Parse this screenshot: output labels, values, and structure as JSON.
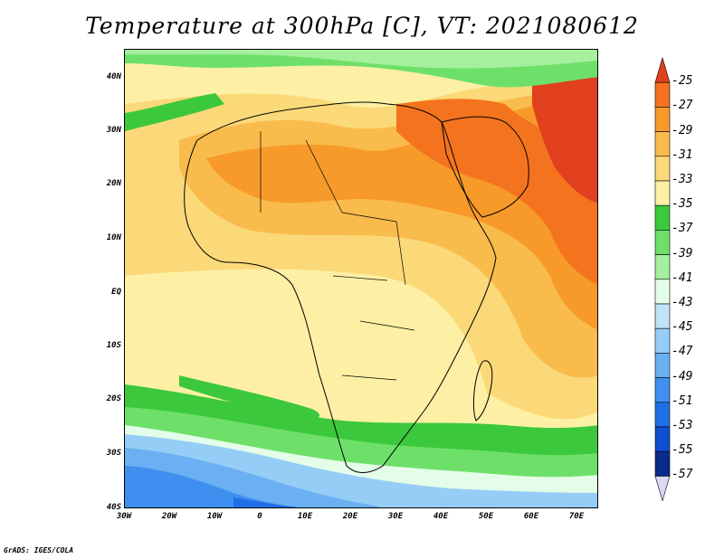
{
  "title": "Temperature at 300hPa [C], VT: 2021080612",
  "credit": "GrADS: IGES/COLA",
  "axes": {
    "lat_labels": [
      "40N",
      "30N",
      "20N",
      "10N",
      "EQ",
      "10S",
      "20S",
      "30S",
      "40S"
    ],
    "lon_labels": [
      "30W",
      "20W",
      "10W",
      "0",
      "10E",
      "20E",
      "30E",
      "40E",
      "50E",
      "60E",
      "70E"
    ]
  },
  "colorbar": {
    "labels": [
      "-25",
      "-27",
      "-29",
      "-31",
      "-33",
      "-35",
      "-37",
      "-39",
      "-41",
      "-43",
      "-45",
      "-47",
      "-49",
      "-51",
      "-53",
      "-55",
      "-57"
    ],
    "colors": [
      "#e0401e",
      "#f4731e",
      "#f79a2a",
      "#f9bb4c",
      "#fbd978",
      "#fdf0a4",
      "#3cc83c",
      "#6ee06a",
      "#a4f09c",
      "#e4fde8",
      "#bfe3f9",
      "#96cdf6",
      "#6ab0f2",
      "#3e8ff0",
      "#1f6fe6",
      "#0e4ed0",
      "#0a2a8c",
      "#dcd8f8"
    ]
  }
}
